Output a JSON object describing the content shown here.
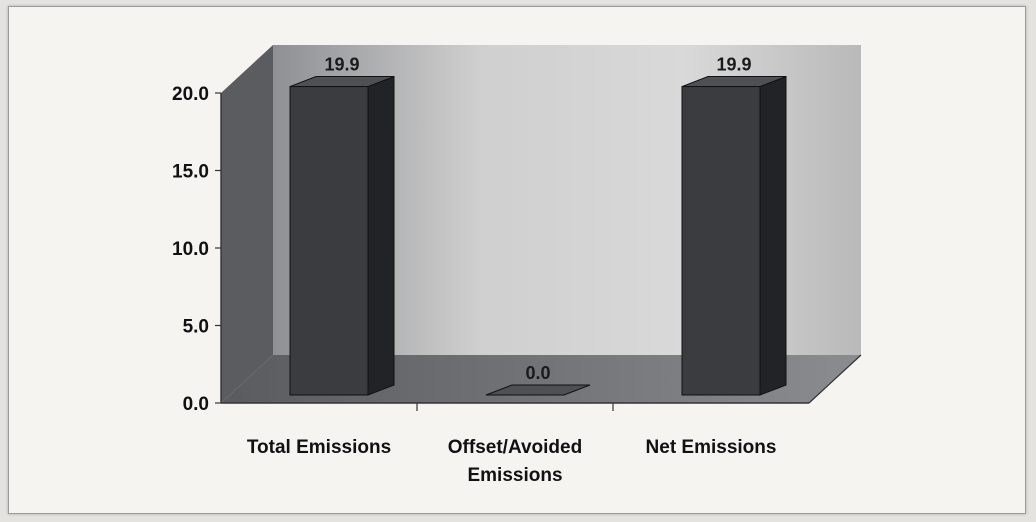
{
  "chart_data": {
    "type": "bar",
    "categories": [
      [
        "Total Emissions"
      ],
      [
        "Offset/Avoided",
        "Emissions"
      ],
      [
        "Net Emissions"
      ]
    ],
    "values": [
      19.9,
      0.0,
      19.9
    ],
    "data_labels": [
      "19.9",
      "0.0",
      "19.9"
    ],
    "yticks": [
      "0.0",
      "5.0",
      "10.0",
      "15.0",
      "20.0"
    ],
    "ylim": [
      0,
      20
    ],
    "grid": false,
    "legend": "none",
    "style": "3d",
    "colors": {
      "bar_front": "#3a3c40",
      "bar_side": "#222326",
      "bar_top": "#4e5055",
      "back_wall": "#bdbdbd",
      "side_wall": "#5a5c60",
      "floor": "#6c6e72"
    }
  }
}
